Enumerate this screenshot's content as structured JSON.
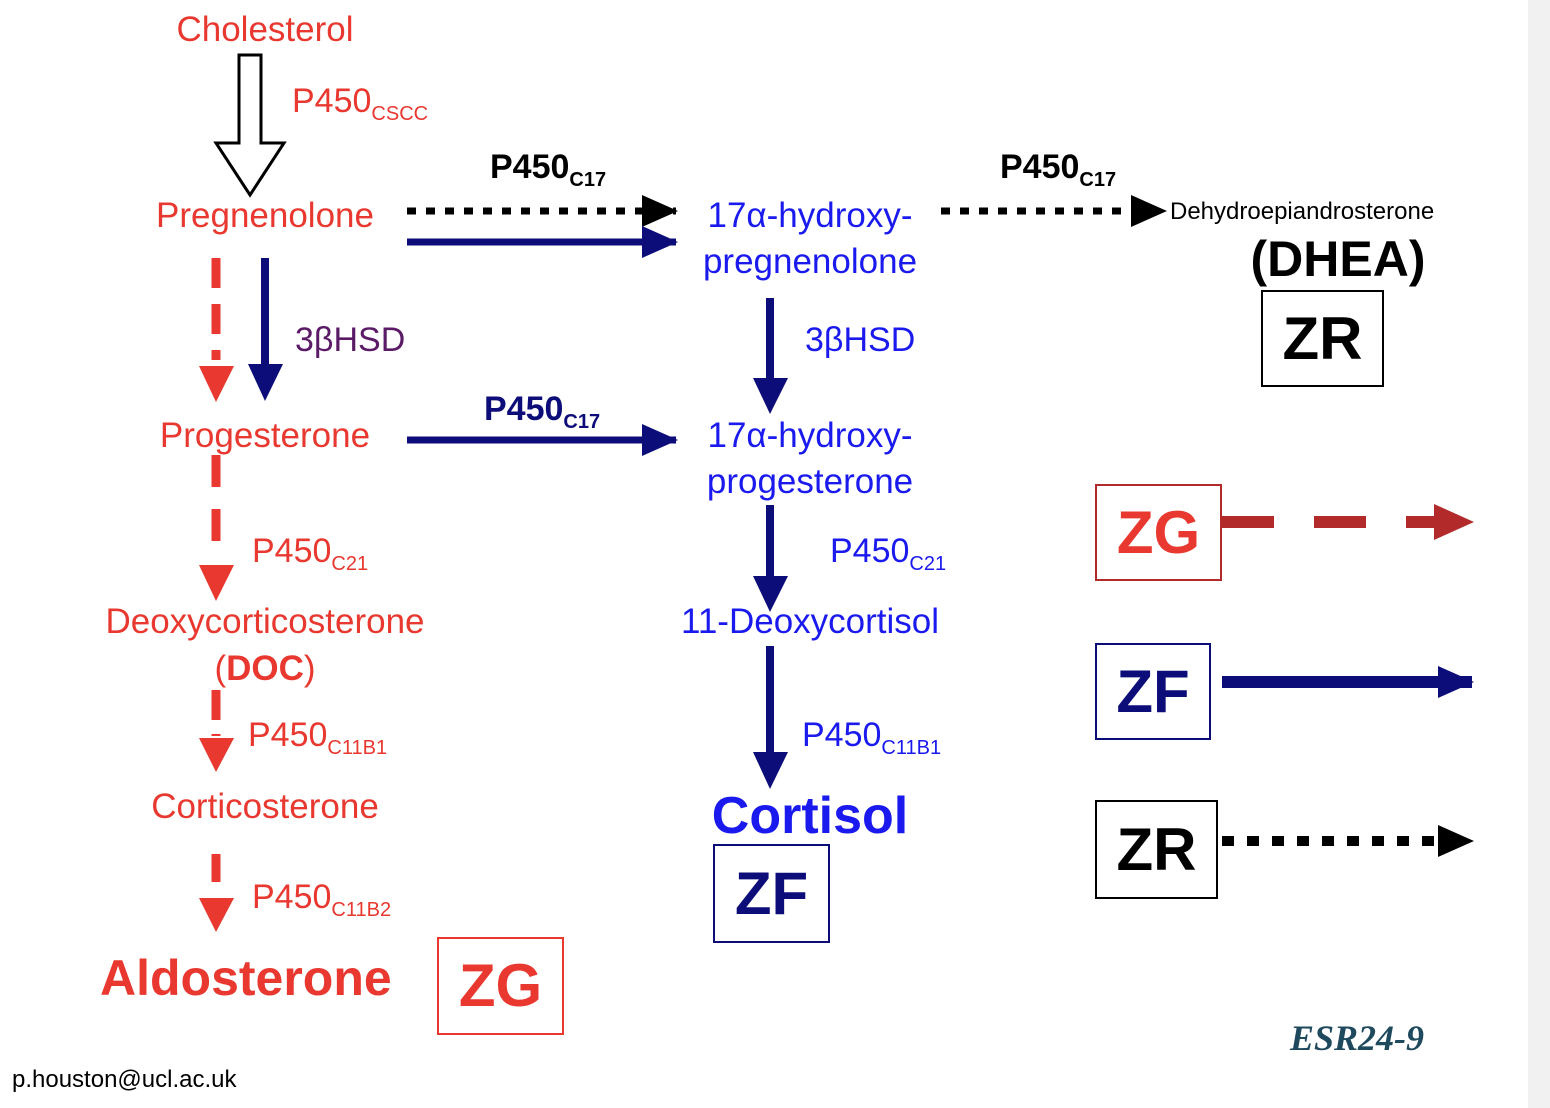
{
  "molecules": {
    "cholesterol": "Cholesterol",
    "pregnenolone": "Pregnenolone",
    "progesterone": "Progesterone",
    "deoxycorticosterone": "Deoxycorticosterone",
    "doc_open": "(",
    "doc_abbr": "DOC",
    "doc_close": ")",
    "corticosterone": "Corticosterone",
    "aldosterone": "Aldosterone",
    "hydroxypregnenolone_line1": "17α-hydroxy-",
    "hydroxypregnenolone_line2": "pregnenolone",
    "hydroxyprogesterone_line1": "17α-hydroxy-",
    "hydroxyprogesterone_line2": "progesterone",
    "deoxycortisol": "11-Deoxycortisol",
    "cortisol": "Cortisol",
    "dhea_full": "Dehydroepiandrosterone",
    "dhea_abbr": "(DHEA)"
  },
  "enzymes": {
    "p450": "P450",
    "cscc": "CSCC",
    "c17": "C17",
    "c21": "C21",
    "c11b1": "C11B1",
    "c11b2": "C11B2",
    "hsd_red": "3βHSD",
    "hsd_blue": "3βHSD"
  },
  "zones": {
    "zg": "ZG",
    "zf": "ZF",
    "zr": "ZR"
  },
  "legend": {
    "items": [
      {
        "zone": "ZG",
        "style": "dashed",
        "color": "#b22a2a"
      },
      {
        "zone": "ZF",
        "style": "solid",
        "color": "#0d0d7a"
      },
      {
        "zone": "ZR",
        "style": "dotted",
        "color": "#000000"
      }
    ]
  },
  "footer": {
    "email": "p.houston@ucl.ac.uk",
    "slide_id": "ESR24-9"
  },
  "colors": {
    "zg_red": "#e8382f",
    "zg_dark_red": "#b22a2a",
    "zf_navy": "#0d0d7a",
    "zf_text_blue": "#1a1aee",
    "zr_black": "#000000",
    "hsd_purple": "#5a1a66"
  }
}
